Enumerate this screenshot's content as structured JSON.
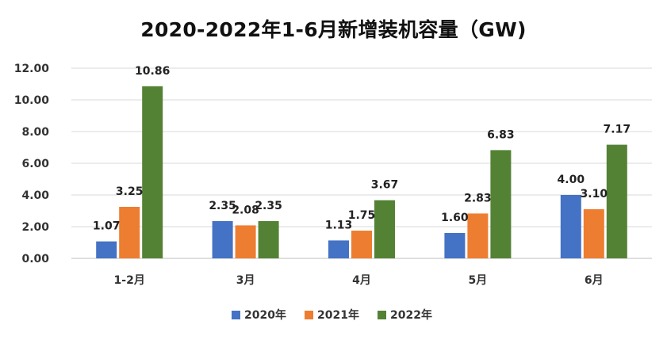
{
  "chart_data": {
    "type": "bar",
    "title": "2020-2022年1-6月新增装机容量（GW)",
    "xlabel": "",
    "ylabel": "",
    "categories": [
      "1-2月",
      "3月",
      "4月",
      "5月",
      "6月"
    ],
    "ylim": [
      0,
      12
    ],
    "yticks": [
      "0.00",
      "2.00",
      "4.00",
      "6.00",
      "8.00",
      "10.00",
      "12.00"
    ],
    "grid": true,
    "legend_position": "bottom",
    "series": [
      {
        "name": "2020年",
        "color": "#4472C4",
        "values": [
          1.07,
          2.35,
          1.13,
          1.6,
          4.0
        ],
        "labels": [
          "1.07",
          "2.35",
          "1.13",
          "1.60",
          "4.00"
        ]
      },
      {
        "name": "2021年",
        "color": "#ED7D31",
        "values": [
          3.25,
          2.08,
          1.75,
          2.83,
          3.1
        ],
        "labels": [
          "3.25",
          "2.08",
          "1.75",
          "2.83",
          "3.10"
        ]
      },
      {
        "name": "2022年",
        "color": "#548235",
        "values": [
          10.86,
          2.35,
          3.67,
          6.83,
          7.17
        ],
        "labels": [
          "10.86",
          "2.35",
          "3.67",
          "6.83",
          "7.17"
        ]
      }
    ]
  }
}
